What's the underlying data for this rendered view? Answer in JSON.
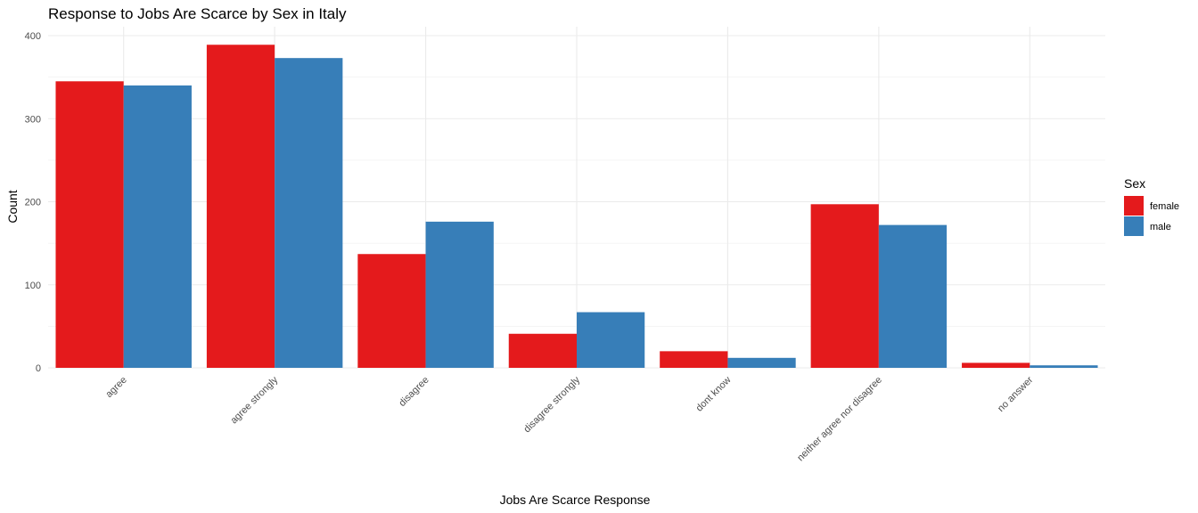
{
  "chart_data": {
    "type": "bar",
    "title": "Response to Jobs Are Scarce by Sex in Italy",
    "xlabel": "Jobs Are Scarce Response",
    "ylabel": "Count",
    "ylim": [
      0,
      400
    ],
    "yticks": [
      0,
      100,
      200,
      300,
      400
    ],
    "grid": true,
    "legend_position": "right",
    "legend_title": "Sex",
    "categories": [
      "agree",
      "agree strongly",
      "disagree",
      "disagree strongly",
      "dont know",
      "neither agree nor disagree",
      "no answer"
    ],
    "series": [
      {
        "name": "female",
        "color": "#E41A1C",
        "values": [
          345,
          389,
          137,
          41,
          20,
          197,
          6
        ]
      },
      {
        "name": "male",
        "color": "#377EB8",
        "values": [
          340,
          373,
          176,
          67,
          12,
          172,
          3
        ]
      }
    ]
  }
}
